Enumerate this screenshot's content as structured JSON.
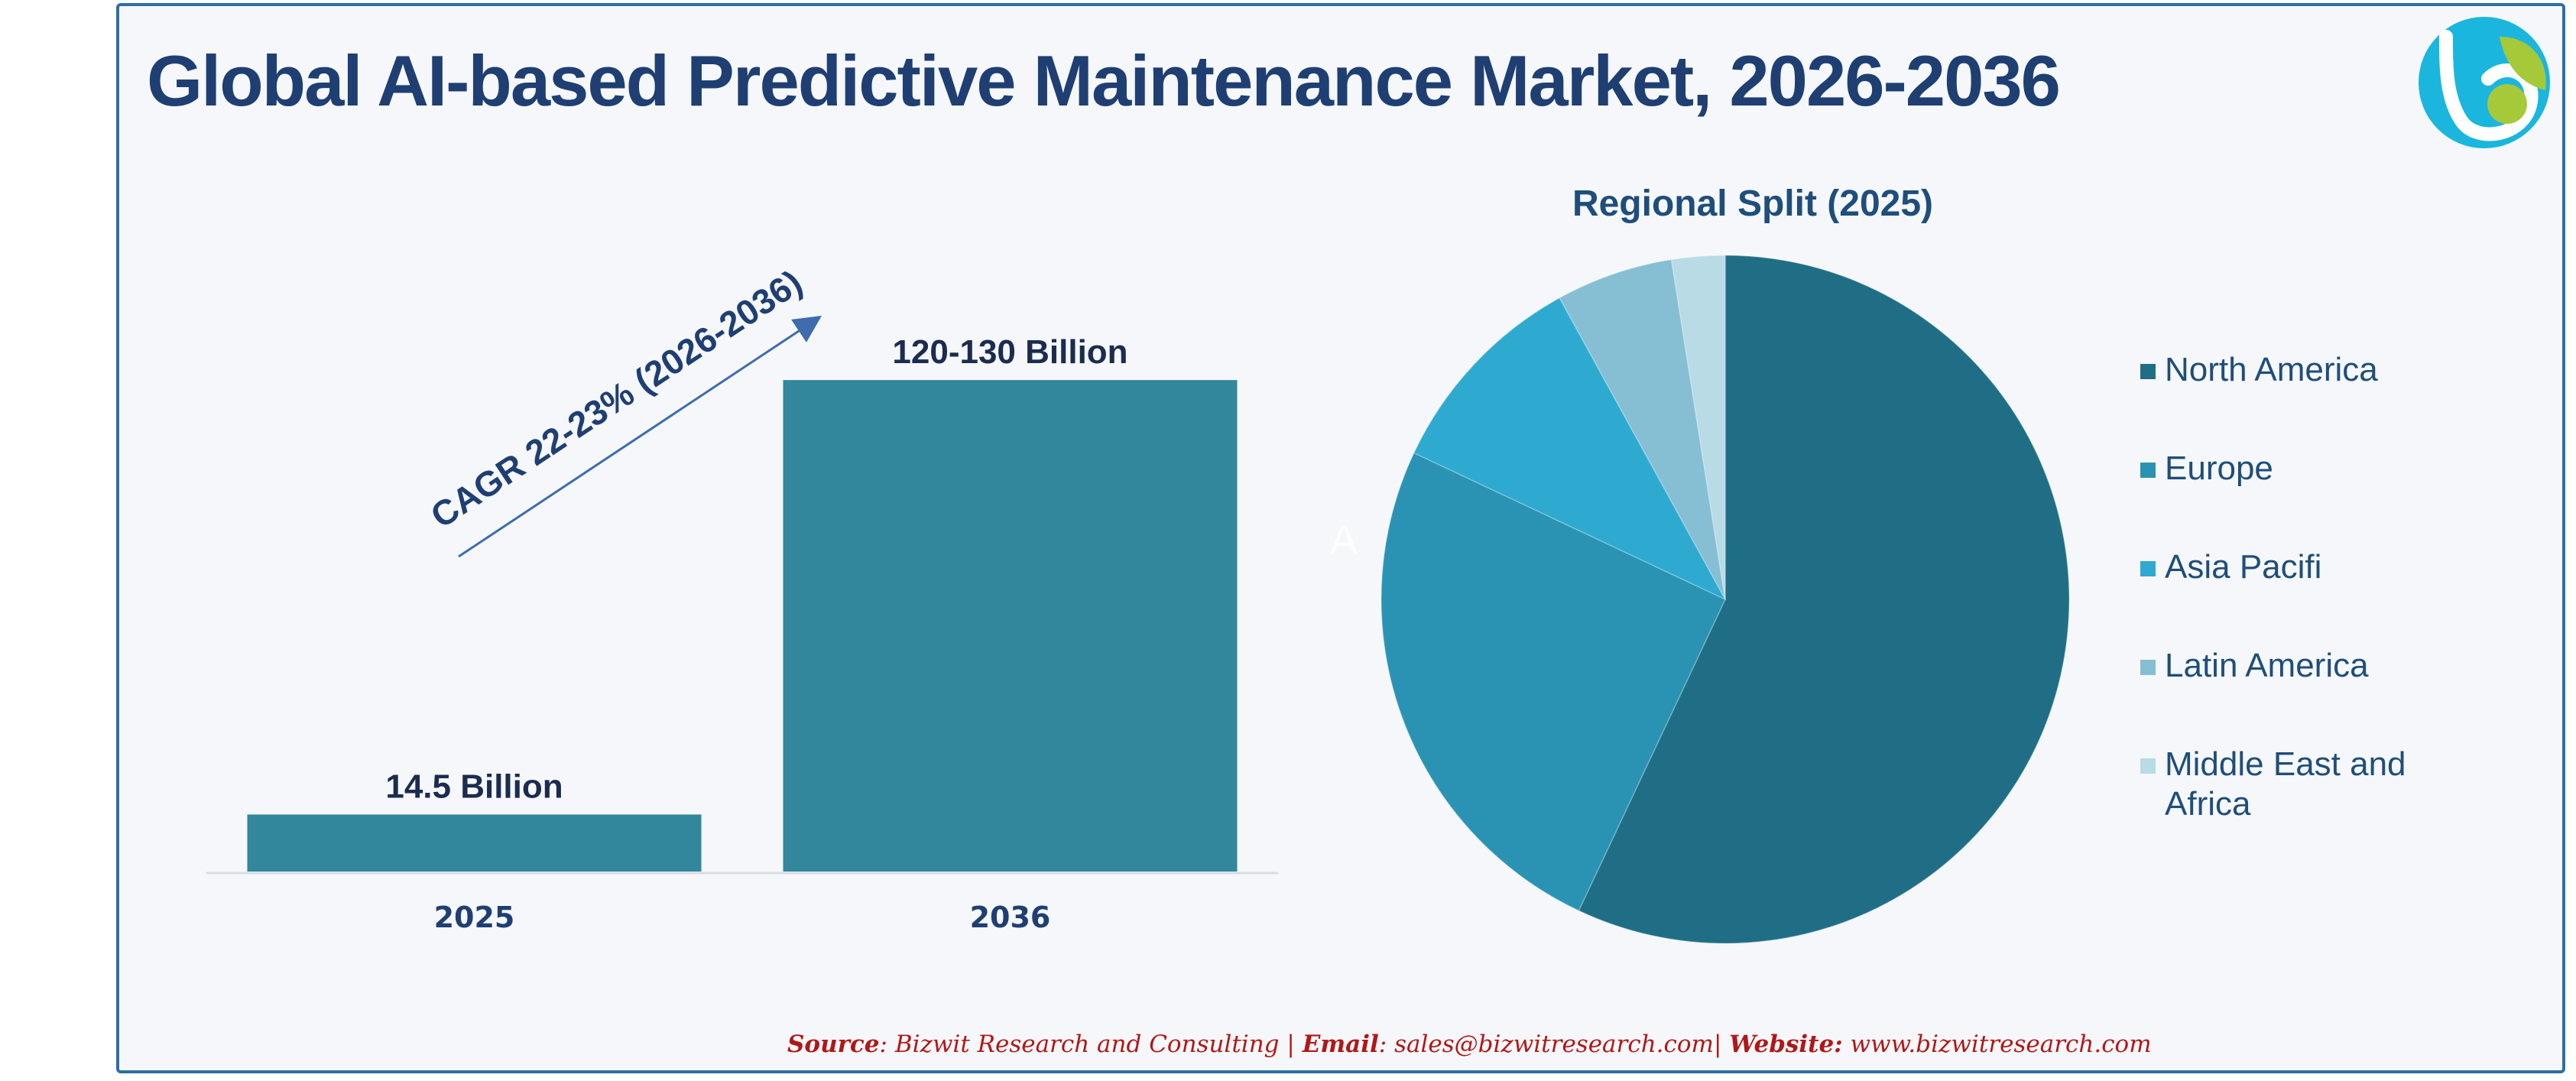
{
  "title": "Global AI-based Predictive Maintenance Market, 2026-2036",
  "footer": {
    "source_label": "Source",
    "source_value": ": Bizwit Research and Consulting | ",
    "email_label": "Email",
    "email_value": ": sales@bizwitresearch.com| ",
    "website_label": "Website:",
    "website_value": " www.bizwitresearch.com"
  },
  "colors": {
    "title": "#1f3f73",
    "bar": "#32879c",
    "arrow": "#3e6cad",
    "footer": "#b01818",
    "logo_cyan": "#1bb6dd",
    "logo_green": "#a6c93a"
  },
  "logo": {
    "icon": "bizwit-logo-icon"
  },
  "chart_data": [
    {
      "type": "bar",
      "title": "",
      "categories": [
        "2025",
        "2036"
      ],
      "values": [
        14.5,
        125
      ],
      "data_labels": [
        "14.5 Billion",
        "120-130 Billion"
      ],
      "ylim": [
        0,
        140
      ],
      "xlabel": "",
      "ylabel": "",
      "grid": false,
      "annotation": "CAGR 22-23% (2026-2036)"
    },
    {
      "type": "pie",
      "title": "Regional Split (2025)",
      "legend_position": "right",
      "slices": [
        {
          "label": "North America",
          "value": 57,
          "color": "#1f6e85"
        },
        {
          "label": "Europe",
          "value": 25,
          "color": "#2a93b4"
        },
        {
          "label": "Asia Pacifi",
          "value": 10,
          "color": "#2eaad0"
        },
        {
          "label": "Latin America",
          "value": 5.5,
          "color": "#86bfd4"
        },
        {
          "label": "Middle East and Africa",
          "value": 2.5,
          "color": "#b8dbe6"
        }
      ],
      "stray_label": "A"
    }
  ]
}
